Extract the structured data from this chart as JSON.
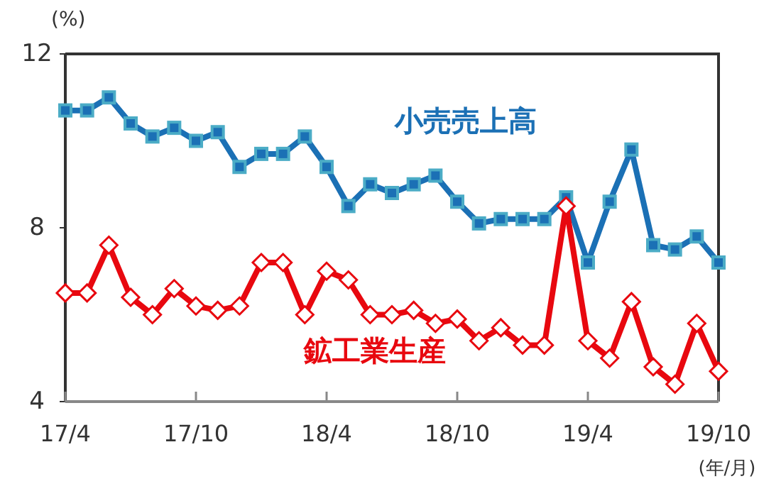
{
  "chart_data": {
    "type": "line",
    "ylabel": "(%)",
    "xlabel": "(年/月)",
    "categories": [
      "17/4",
      null,
      null,
      null,
      null,
      null,
      "17/10",
      null,
      null,
      null,
      null,
      null,
      "18/4",
      null,
      null,
      null,
      null,
      null,
      "18/10",
      null,
      null,
      null,
      null,
      null,
      "19/4",
      null,
      null,
      null,
      null,
      null,
      "19/10"
    ],
    "series": [
      {
        "name": "小売売上高",
        "color": "#1b70b5",
        "marker": "square",
        "values": [
          10.7,
          10.7,
          11.0,
          10.4,
          10.1,
          10.3,
          10.0,
          10.2,
          9.4,
          9.7,
          9.7,
          10.1,
          9.4,
          8.5,
          9.0,
          8.8,
          9.0,
          9.2,
          8.6,
          8.1,
          8.2,
          8.2,
          8.2,
          8.7,
          7.2,
          8.6,
          9.8,
          7.6,
          7.5,
          7.8,
          7.2
        ]
      },
      {
        "name": "鉱工業生産",
        "color": "#e8080f",
        "marker": "diamond",
        "values": [
          6.5,
          6.5,
          7.6,
          6.4,
          6.0,
          6.6,
          6.2,
          6.1,
          6.2,
          7.2,
          7.2,
          6.0,
          7.0,
          6.8,
          6.0,
          6.0,
          6.1,
          5.8,
          5.9,
          5.4,
          5.7,
          5.3,
          5.3,
          8.5,
          5.4,
          5.0,
          6.3,
          4.8,
          4.4,
          5.8,
          4.7
        ]
      }
    ],
    "ylim": [
      4,
      12
    ],
    "yticks": [
      4,
      8,
      12
    ],
    "grid": false,
    "legend": false,
    "line_style": "solid"
  }
}
